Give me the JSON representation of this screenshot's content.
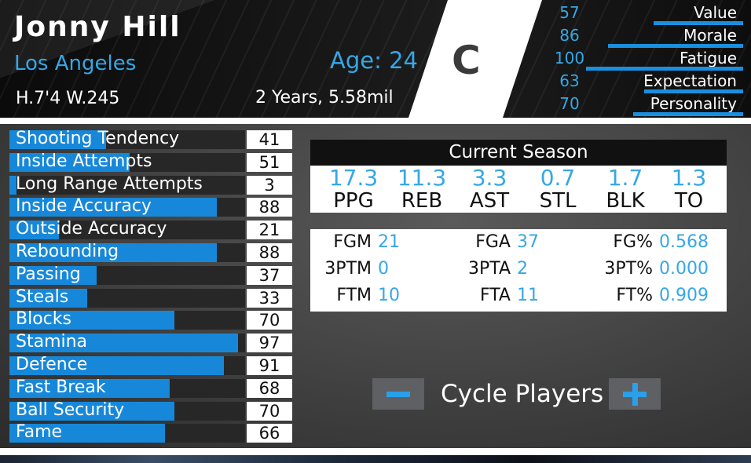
{
  "player": {
    "name": "Jonny Hill",
    "city": "Los Angeles",
    "body": "H.7'4 W.245",
    "age": "Age: 24",
    "contract": "2 Years, 5.58mil",
    "grade": "C"
  },
  "traits": [
    {
      "value": "57",
      "label": "Value",
      "level": 57
    },
    {
      "value": "86",
      "label": "Morale",
      "level": 86
    },
    {
      "value": "100",
      "label": "Fatigue",
      "level": 100
    },
    {
      "value": "63",
      "label": "Expectation",
      "level": 63
    },
    {
      "value": "70",
      "label": "Personality",
      "level": 70
    }
  ],
  "attributes": [
    {
      "label": "Shooting Tendency",
      "value": "41",
      "level": 41
    },
    {
      "label": "Inside Attempts",
      "value": "51",
      "level": 51
    },
    {
      "label": "Long Range Attempts",
      "value": "3",
      "level": 3
    },
    {
      "label": "Inside Accuracy",
      "value": "88",
      "level": 88
    },
    {
      "label": "Outside Accuracy",
      "value": "21",
      "level": 21
    },
    {
      "label": "Rebounding",
      "value": "88",
      "level": 88
    },
    {
      "label": "Passing",
      "value": "37",
      "level": 37
    },
    {
      "label": "Steals",
      "value": "33",
      "level": 33
    },
    {
      "label": "Blocks",
      "value": "70",
      "level": 70
    },
    {
      "label": "Stamina",
      "value": "97",
      "level": 97
    },
    {
      "label": "Defence",
      "value": "91",
      "level": 91
    },
    {
      "label": "Fast Break",
      "value": "68",
      "level": 68
    },
    {
      "label": "Ball Security",
      "value": "70",
      "level": 70
    },
    {
      "label": "Fame",
      "value": "66",
      "level": 66
    }
  ],
  "season": {
    "title": "Current Season",
    "stats": [
      {
        "value": "17.3",
        "label": "PPG"
      },
      {
        "value": "11.3",
        "label": "REB"
      },
      {
        "value": "3.3",
        "label": "AST"
      },
      {
        "value": "0.7",
        "label": "STL"
      },
      {
        "value": "1.7",
        "label": "BLK"
      },
      {
        "value": "1.3",
        "label": "TO"
      }
    ]
  },
  "shooting": [
    {
      "label": "FGM",
      "value": "21"
    },
    {
      "label": "FGA",
      "value": "37"
    },
    {
      "label": "FG%",
      "value": "0.568"
    },
    {
      "label": "3PTM",
      "value": "0"
    },
    {
      "label": "3PTA",
      "value": "2"
    },
    {
      "label": "3PT%",
      "value": "0.000"
    },
    {
      "label": "FTM",
      "value": "10"
    },
    {
      "label": "FTA",
      "value": "11"
    },
    {
      "label": "FT%",
      "value": "0.909"
    }
  ],
  "cycle": {
    "label": "Cycle Players",
    "minus_icon": "minus-icon",
    "plus_icon": "plus-icon"
  },
  "colors": {
    "accent": "#36a7e6",
    "bar": "#1788d9"
  }
}
